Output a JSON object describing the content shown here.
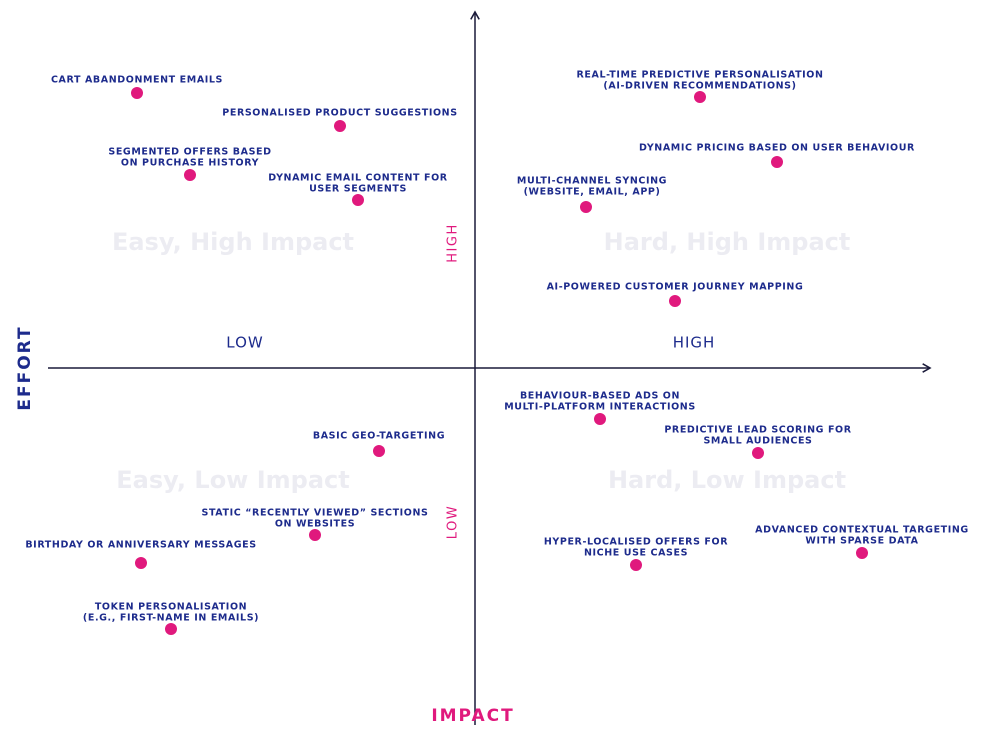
{
  "axes": {
    "y_title": "EFFORT",
    "x_title": "IMPACT",
    "x_low": "LOW",
    "x_high": "HIGH",
    "y_high": "HIGH",
    "y_low": "LOW"
  },
  "quadrants": [
    "Easy, High Impact",
    "Hard, High Impact",
    "Easy, Low Impact",
    "Hard, Low Impact"
  ],
  "items": [
    {
      "lines": [
        "CART ABANDONMENT EMAILS"
      ]
    },
    {
      "lines": [
        "PERSONALISED PRODUCT SUGGESTIONS"
      ]
    },
    {
      "lines": [
        "SEGMENTED OFFERS BASED",
        "ON PURCHASE HISTORY"
      ]
    },
    {
      "lines": [
        "DYNAMIC EMAIL CONTENT FOR",
        "USER SEGMENTS"
      ]
    },
    {
      "lines": [
        "REAL-TIME PREDICTIVE PERSONALISATION",
        "(AI-DRIVEN RECOMMENDATIONS)"
      ]
    },
    {
      "lines": [
        "DYNAMIC PRICING BASED ON USER BEHAVIOUR"
      ]
    },
    {
      "lines": [
        "MULTI-CHANNEL SYNCING",
        "(WEBSITE, EMAIL, APP)"
      ]
    },
    {
      "lines": [
        "AI-POWERED CUSTOMER JOURNEY MAPPING"
      ]
    },
    {
      "lines": [
        "BEHAVIOUR-BASED ADS ON",
        "MULTI-PLATFORM INTERACTIONS"
      ]
    },
    {
      "lines": [
        "PREDICTIVE LEAD SCORING FOR",
        "SMALL AUDIENCES"
      ]
    },
    {
      "lines": [
        "BASIC GEO-TARGETING"
      ]
    },
    {
      "lines": [
        "STATIC “RECENTLY VIEWED” SECTIONS",
        "ON WEBSITES"
      ]
    },
    {
      "lines": [
        "BIRTHDAY OR ANNIVERSARY MESSAGES"
      ]
    },
    {
      "lines": [
        "TOKEN PERSONALISATION",
        "(E.G., FIRST-NAME IN EMAILS)"
      ]
    },
    {
      "lines": [
        "HYPER-LOCALISED OFFERS FOR",
        "NICHE USE CASES"
      ]
    },
    {
      "lines": [
        "ADVANCED CONTEXTUAL TARGETING",
        "WITH SPARSE DATA"
      ]
    }
  ]
}
